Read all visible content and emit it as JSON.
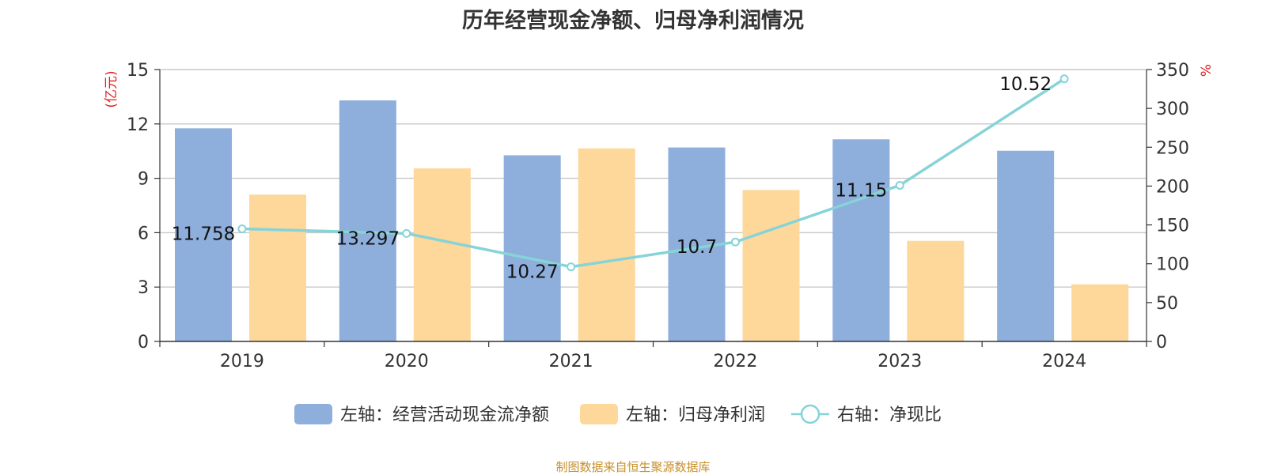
{
  "title": "历年经营现金净额、归母净利润情况",
  "source": "制图数据来自恒生聚源数据库",
  "colors": {
    "cash": "#8eaedb",
    "profit": "#fdd89a",
    "ratio": "#86d3d8",
    "unit": "#e02020",
    "axis": "#333333",
    "grid": "#c8c8c8"
  },
  "chart_data": {
    "type": "bar",
    "title": "历年经营现金净额、归母净利润情况",
    "categories": [
      "2019",
      "2020",
      "2021",
      "2022",
      "2023",
      "2024"
    ],
    "y_left": {
      "unit": "(亿元)",
      "ylim": [
        0,
        15
      ],
      "ticks": [
        "0",
        "3",
        "6",
        "9",
        "12",
        "15"
      ]
    },
    "y_right": {
      "unit": "%",
      "ylim": [
        0,
        350
      ],
      "ticks": [
        "0",
        "50",
        "100",
        "150",
        "200",
        "250",
        "300",
        "350"
      ]
    },
    "series": [
      {
        "name": "左轴：经营活动现金流净额",
        "axis": "left",
        "type": "bar",
        "values": [
          11.758,
          13.297,
          10.27,
          10.7,
          11.15,
          10.52
        ],
        "labels": [
          "11.758",
          "13.297",
          "10.27",
          "10.7",
          "11.15",
          "10.52"
        ]
      },
      {
        "name": "左轴：归母净利润",
        "axis": "left",
        "type": "bar",
        "values": [
          8.1,
          9.55,
          10.65,
          8.35,
          5.55,
          3.15
        ]
      },
      {
        "name": "右轴：净现比",
        "axis": "right",
        "type": "line",
        "values": [
          145,
          139,
          96,
          128,
          201,
          338
        ]
      }
    ],
    "grid": true,
    "legend": "bottom"
  }
}
